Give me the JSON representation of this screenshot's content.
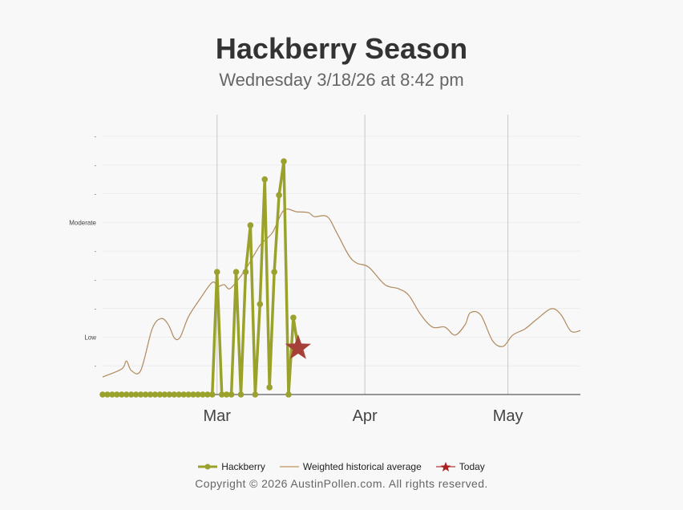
{
  "chart_data": {
    "type": "line",
    "title": "Hackberry Season",
    "subtitle": "Wednesday 3/18/26 at 8:42 pm",
    "x_start_date": "2026-02-05",
    "xlim_days": [
      0,
      100.2
    ],
    "ylim": [
      0,
      9
    ],
    "grid": true,
    "y_ticks": [
      {
        "value": 1,
        "label": "-"
      },
      {
        "value": 2,
        "label": "Low"
      },
      {
        "value": 3,
        "label": "-"
      },
      {
        "value": 4,
        "label": "-"
      },
      {
        "value": 5,
        "label": "-"
      },
      {
        "value": 6,
        "label": "Moderate"
      },
      {
        "value": 7,
        "label": "-"
      },
      {
        "value": 8,
        "label": "-"
      },
      {
        "value": 9,
        "label": "-"
      }
    ],
    "x_ticks": [
      {
        "day": 24,
        "label": "Mar"
      },
      {
        "day": 55,
        "label": "Apr"
      },
      {
        "day": 85,
        "label": "May"
      }
    ],
    "series": [
      {
        "name": "Hackberry",
        "color": "#9aa22c",
        "values": [
          0,
          0,
          0,
          0,
          0,
          0,
          0,
          0,
          0,
          0,
          0,
          0,
          0,
          0,
          0,
          0,
          0,
          0,
          0,
          0,
          0,
          0,
          0,
          0,
          4.27,
          0,
          0,
          0,
          4.27,
          0,
          4.27,
          5.9,
          0,
          3.15,
          7.5,
          0.25,
          4.27,
          6.95,
          8.13,
          0,
          2.68
        ]
      },
      {
        "name": "Weighted historical average",
        "color": "#b08a5e",
        "points": [
          [
            0,
            0.61
          ],
          [
            4,
            0.89
          ],
          [
            5,
            1.17
          ],
          [
            6,
            0.84
          ],
          [
            8,
            0.84
          ],
          [
            10.4,
            2.29
          ],
          [
            12.3,
            2.65
          ],
          [
            13.8,
            2.43
          ],
          [
            15.1,
            1.96
          ],
          [
            16.3,
            2.01
          ],
          [
            18,
            2.71
          ],
          [
            20.5,
            3.35
          ],
          [
            23,
            3.91
          ],
          [
            24.2,
            3.77
          ],
          [
            25.5,
            3.83
          ],
          [
            26.7,
            3.69
          ],
          [
            28.9,
            4.11
          ],
          [
            30.6,
            4.53
          ],
          [
            33.1,
            5.22
          ],
          [
            35.6,
            5.64
          ],
          [
            38,
            6.42
          ],
          [
            40.7,
            6.37
          ],
          [
            43.2,
            6.34
          ],
          [
            44.4,
            6.2
          ],
          [
            47.1,
            6.2
          ],
          [
            49.1,
            5.64
          ],
          [
            51.6,
            4.86
          ],
          [
            53.3,
            4.58
          ],
          [
            55.8,
            4.44
          ],
          [
            59.2,
            3.83
          ],
          [
            62,
            3.69
          ],
          [
            64.2,
            3.46
          ],
          [
            66.7,
            2.79
          ],
          [
            69.2,
            2.35
          ],
          [
            71.8,
            2.35
          ],
          [
            73.9,
            2.07
          ],
          [
            76,
            2.43
          ],
          [
            77.1,
            2.85
          ],
          [
            79.3,
            2.77
          ],
          [
            81.8,
            1.87
          ],
          [
            84,
            1.68
          ],
          [
            86,
            2.07
          ],
          [
            88.6,
            2.29
          ],
          [
            91.1,
            2.63
          ],
          [
            94.1,
            2.99
          ],
          [
            96.1,
            2.79
          ],
          [
            98.2,
            2.21
          ],
          [
            100.2,
            2.23
          ]
        ]
      },
      {
        "name": "Today",
        "color": "#a8403a",
        "points": [
          [
            41,
            1.62
          ]
        ]
      }
    ],
    "legend": [
      "Hackberry",
      "Weighted historical average",
      "Today"
    ],
    "legend_position": "bottom"
  },
  "copyright": "Copyright © 2026 AustinPollen.com.  All rights reserved."
}
